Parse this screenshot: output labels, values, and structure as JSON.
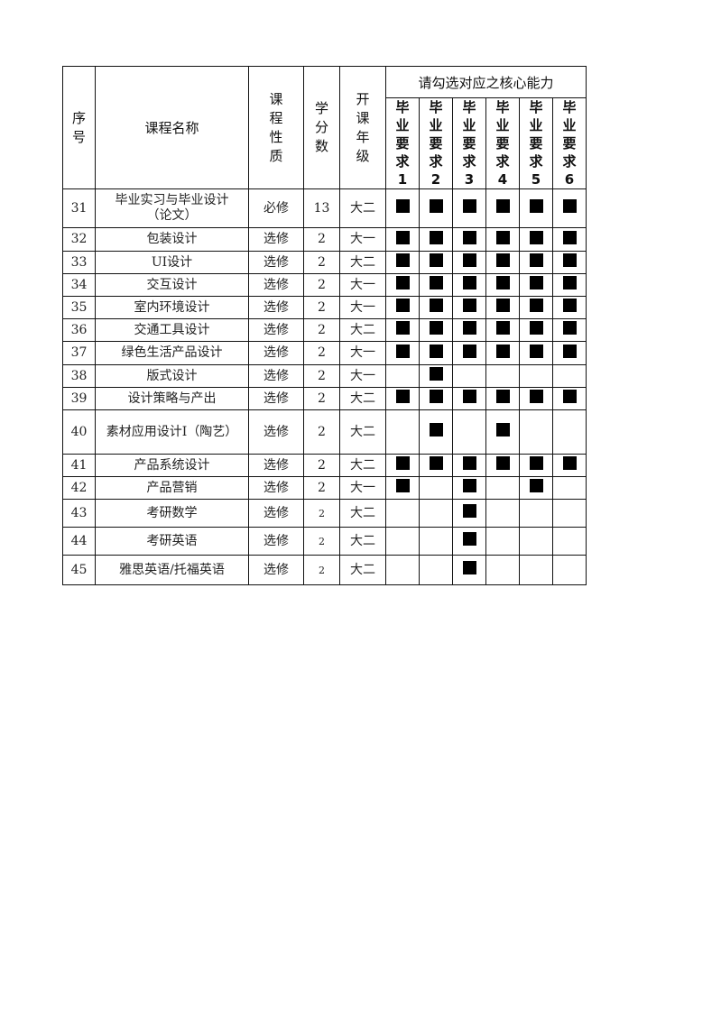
{
  "header": {
    "index": "序号",
    "course_name": "课程名称",
    "course_type": "课程性质",
    "credits": "学分数",
    "grade": "开课年级",
    "competency_group": "请勾选对应之核心能力",
    "requirements": [
      "毕业要求1",
      "毕业要求2",
      "毕业要求3",
      "毕业要求4",
      "毕业要求5",
      "毕业要求6"
    ]
  },
  "check_icon": "filled-square",
  "rows": [
    {
      "index": "31",
      "name": "毕业实习与毕业设计（论文）",
      "type": "必修",
      "credits": "13",
      "grade": "大二",
      "checks": [
        1,
        1,
        1,
        1,
        1,
        1
      ]
    },
    {
      "index": "32",
      "name": "包装设计",
      "type": "选修",
      "credits": "2",
      "grade": "大一",
      "checks": [
        1,
        1,
        1,
        1,
        1,
        1
      ]
    },
    {
      "index": "33",
      "name": "UI设计",
      "type": "选修",
      "credits": "2",
      "grade": "大二",
      "checks": [
        1,
        1,
        1,
        1,
        1,
        1
      ]
    },
    {
      "index": "34",
      "name": "交互设计",
      "type": "选修",
      "credits": "2",
      "grade": "大一",
      "checks": [
        1,
        1,
        1,
        1,
        1,
        1
      ]
    },
    {
      "index": "35",
      "name": "室内环境设计",
      "type": "选修",
      "credits": "2",
      "grade": "大一",
      "checks": [
        1,
        1,
        1,
        1,
        1,
        1
      ]
    },
    {
      "index": "36",
      "name": "交通工具设计",
      "type": "选修",
      "credits": "2",
      "grade": "大二",
      "checks": [
        1,
        1,
        1,
        1,
        1,
        1
      ]
    },
    {
      "index": "37",
      "name": "绿色生活产品设计",
      "type": "选修",
      "credits": "2",
      "grade": "大一",
      "checks": [
        1,
        1,
        1,
        1,
        1,
        1
      ]
    },
    {
      "index": "38",
      "name": "版式设计",
      "type": "选修",
      "credits": "2",
      "grade": "大一",
      "checks": [
        0,
        1,
        0,
        0,
        0,
        0
      ]
    },
    {
      "index": "39",
      "name": "设计策略与产出",
      "type": "选修",
      "credits": "2",
      "grade": "大二",
      "checks": [
        1,
        1,
        1,
        1,
        1,
        1
      ]
    },
    {
      "index": "40",
      "name": "素材应用设计I（陶艺）",
      "type": "选修",
      "credits": "2",
      "grade": "大二",
      "checks": [
        0,
        1,
        0,
        1,
        0,
        0
      ]
    },
    {
      "index": "41",
      "name": "产品系统设计",
      "type": "选修",
      "credits": "2",
      "grade": "大二",
      "checks": [
        1,
        1,
        1,
        1,
        1,
        1
      ]
    },
    {
      "index": "42",
      "name": "产品营销",
      "type": "选修",
      "credits": "2",
      "grade": "大一",
      "checks": [
        1,
        0,
        1,
        0,
        1,
        0
      ]
    },
    {
      "index": "43",
      "name": "考研数学",
      "type": "选修",
      "credits": "2",
      "grade": "大二",
      "checks": [
        0,
        0,
        1,
        0,
        0,
        0
      ]
    },
    {
      "index": "44",
      "name": "考研英语",
      "type": "选修",
      "credits": "2",
      "grade": "大二",
      "checks": [
        0,
        0,
        1,
        0,
        0,
        0
      ]
    },
    {
      "index": "45",
      "name": "雅思英语/托福英语",
      "type": "选修",
      "credits": "2",
      "grade": "大二",
      "checks": [
        0,
        0,
        1,
        0,
        0,
        0
      ]
    }
  ]
}
